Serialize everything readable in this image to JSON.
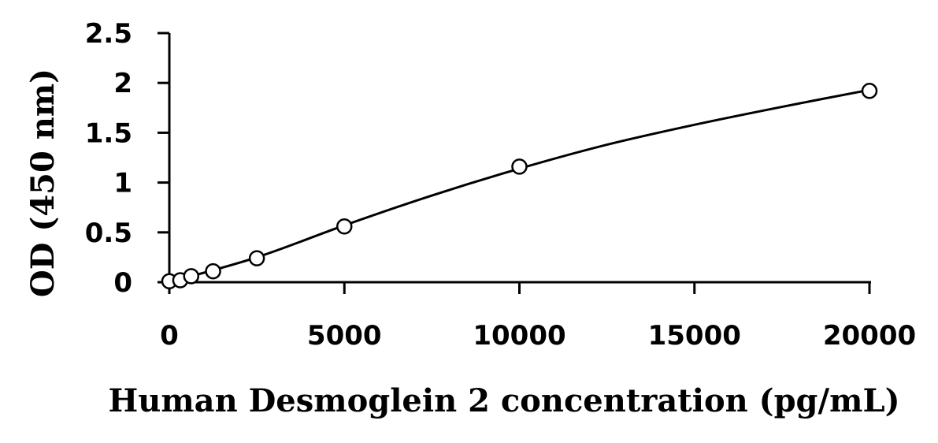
{
  "chart_data": {
    "type": "scatter",
    "title": "",
    "xlabel": "Human Desmoglein 2 concentration (pg/mL)",
    "ylabel": "OD (450 nm)",
    "xlim": [
      0,
      20000
    ],
    "ylim": [
      0,
      2.5
    ],
    "x_ticks": [
      0,
      5000,
      10000,
      15000,
      20000
    ],
    "y_ticks": [
      0,
      0.5,
      1,
      1.5,
      2,
      2.5
    ],
    "x_tick_labels": [
      "0",
      "5000",
      "10000",
      "15000",
      "20000"
    ],
    "y_tick_labels": [
      "0",
      "0.5",
      "1",
      "1.5",
      "2",
      "2.5"
    ],
    "grid": false,
    "legend": "none",
    "marker": "open-circle",
    "series": [
      {
        "x": [
          0,
          313,
          625,
          1250,
          2500,
          5000,
          10000,
          20000
        ],
        "y": [
          0.01,
          0.02,
          0.06,
          0.11,
          0.24,
          0.56,
          1.16,
          1.92
        ]
      }
    ],
    "fit_curve": {
      "type": "smooth",
      "x": [
        0,
        2500,
        5000,
        7500,
        10000,
        12500,
        15000,
        17500,
        20000
      ],
      "y": [
        0.0,
        0.25,
        0.57,
        0.87,
        1.14,
        1.38,
        1.58,
        1.76,
        1.93
      ]
    }
  }
}
